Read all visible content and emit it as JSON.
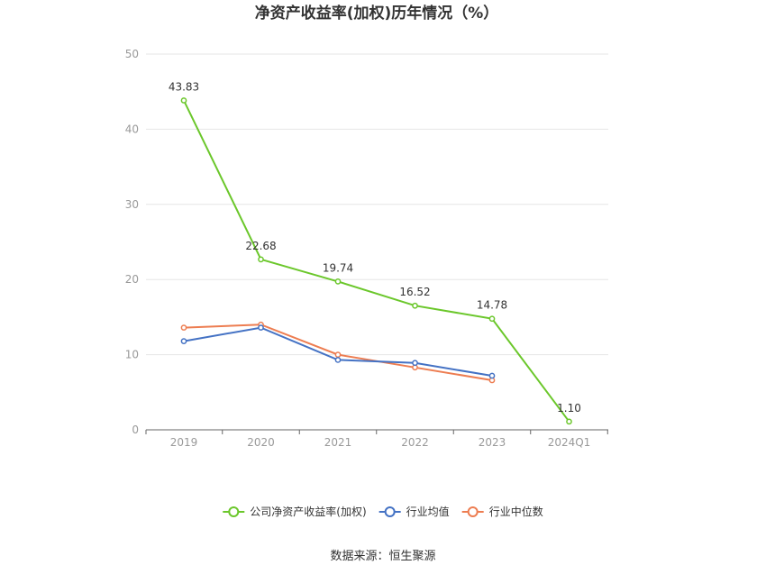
{
  "chart_data": {
    "type": "line",
    "title": "净资产收益率(加权)历年情况（%）",
    "categories": [
      "2019",
      "2020",
      "2021",
      "2022",
      "2023",
      "2024Q1"
    ],
    "ylim": [
      0,
      50
    ],
    "yticks": [
      0,
      10,
      20,
      30,
      40,
      50
    ],
    "grid": true,
    "legend_position": "bottom-center",
    "series": [
      {
        "name": "公司净资产收益率(加权)",
        "color": "#6bc72b",
        "values": [
          43.83,
          22.68,
          19.74,
          16.52,
          14.78,
          1.1
        ],
        "labels": [
          "43.83",
          "22.68",
          "19.74",
          "16.52",
          "14.78",
          "1.10"
        ]
      },
      {
        "name": "行业均值",
        "color": "#4472c4",
        "values": [
          11.8,
          13.6,
          9.3,
          8.9,
          7.2,
          null
        ]
      },
      {
        "name": "行业中位数",
        "color": "#ed7d51",
        "values": [
          13.6,
          14.0,
          10.0,
          8.3,
          6.6,
          null
        ]
      }
    ],
    "source": "数据来源：恒生聚源"
  }
}
